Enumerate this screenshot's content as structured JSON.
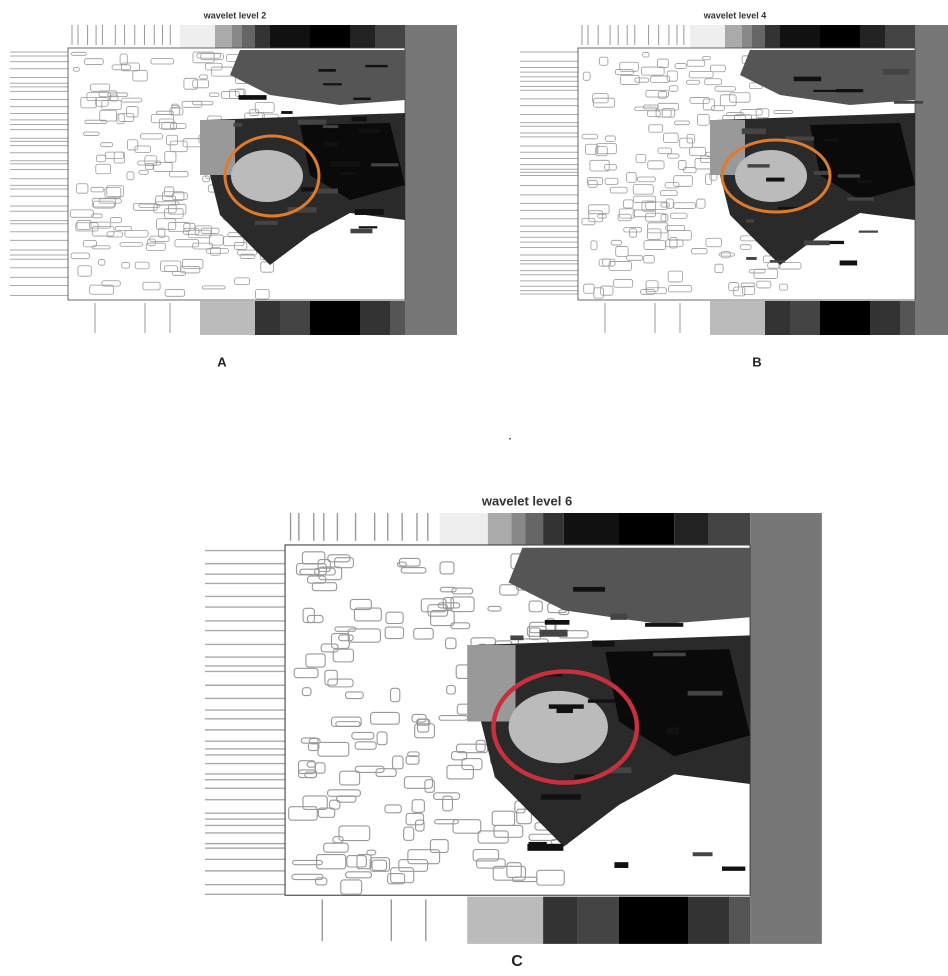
{
  "panels": [
    {
      "title": "wavelet level 2",
      "label": "A"
    },
    {
      "title": "wavelet level 4",
      "label": "B"
    },
    {
      "title": "wavelet level 6",
      "label": "C"
    }
  ],
  "separator": "."
}
